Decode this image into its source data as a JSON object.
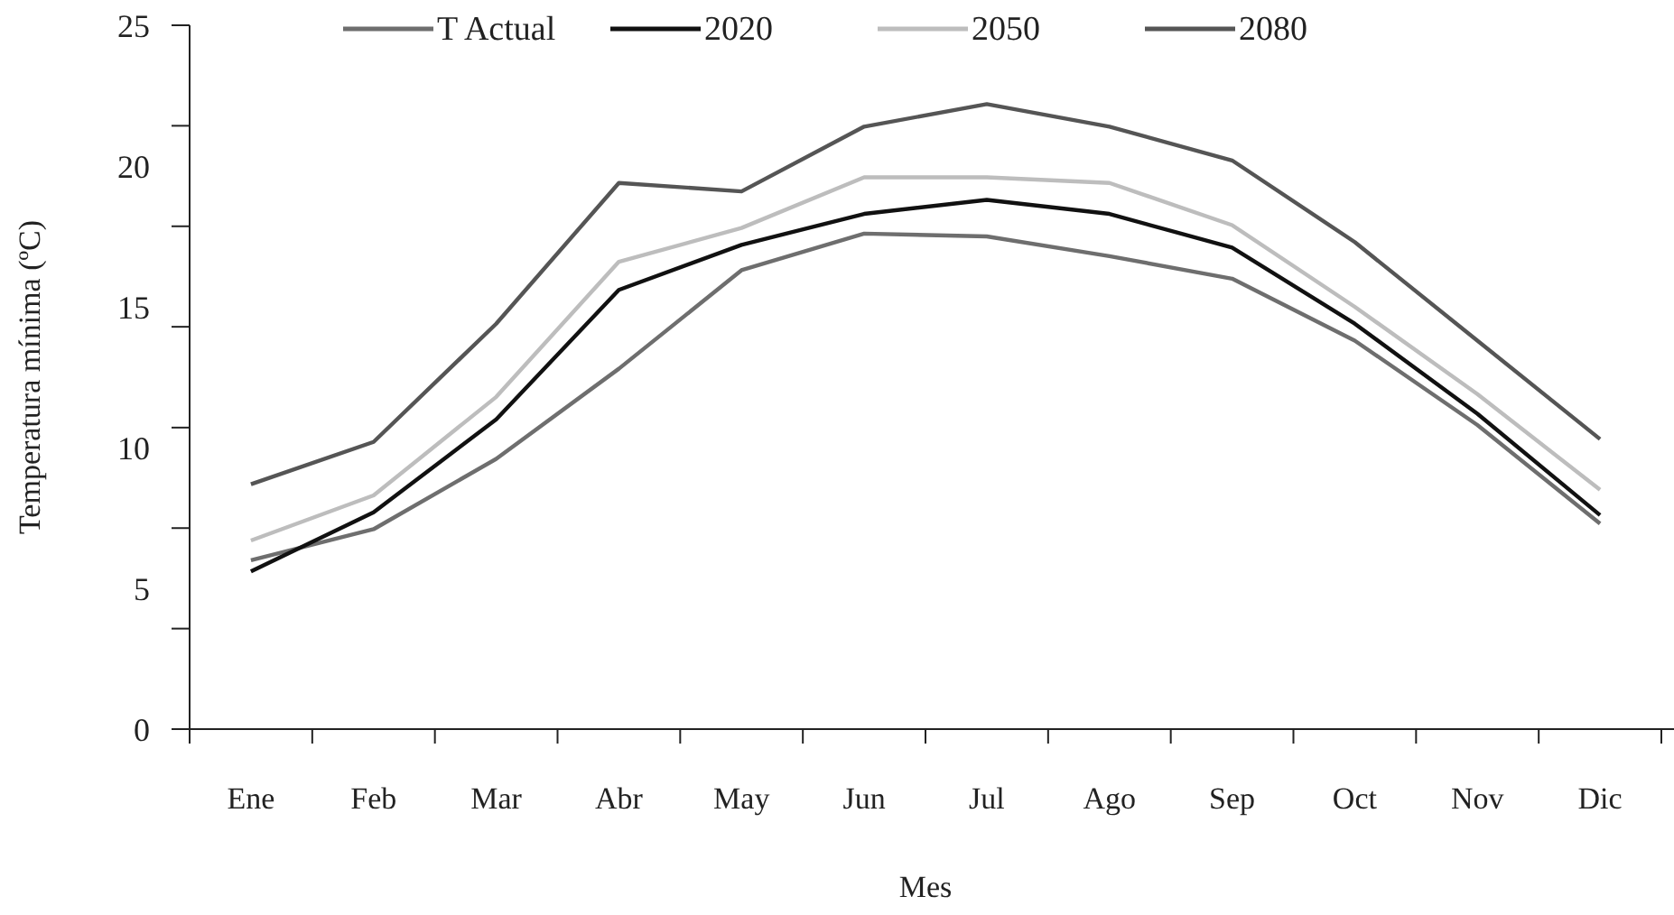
{
  "chart_data": {
    "type": "line",
    "xlabel": "Mes",
    "ylabel": "Temperatura mínima (ºC)",
    "categories": [
      "Ene",
      "Feb",
      "Mar",
      "Abr",
      "May",
      "Jun",
      "Jul",
      "Ago",
      "Sep",
      "Oct",
      "Nov",
      "Dic"
    ],
    "ylim": [
      0,
      25
    ],
    "yticks": [
      0,
      5,
      10,
      15,
      20,
      25,
      {
        "value": 3.57,
        "label": null
      },
      {
        "value": 7.14,
        "label": null
      },
      {
        "value": 10.71,
        "label": null
      },
      {
        "value": 14.29,
        "label": null
      },
      {
        "value": 17.86,
        "label": null
      },
      {
        "value": 21.43,
        "label": null
      }
    ],
    "series": [
      {
        "name": "T Actual",
        "color": "#6e6e6e",
        "values": [
          6.0,
          7.1,
          9.6,
          12.8,
          16.3,
          17.6,
          17.5,
          16.8,
          16.0,
          13.8,
          10.8,
          7.3
        ]
      },
      {
        "name": "2020",
        "color": "#111111",
        "values": [
          5.6,
          7.7,
          11.0,
          15.6,
          17.2,
          18.3,
          18.8,
          18.3,
          17.1,
          14.4,
          11.2,
          7.6
        ]
      },
      {
        "name": "2050",
        "color": "#bdbdbd",
        "values": [
          6.7,
          8.3,
          11.8,
          16.6,
          17.8,
          19.6,
          19.6,
          19.4,
          17.9,
          15.0,
          11.9,
          8.5
        ]
      },
      {
        "name": "2080",
        "color": "#555555",
        "values": [
          8.7,
          10.2,
          14.4,
          19.4,
          19.1,
          21.4,
          22.2,
          21.4,
          20.2,
          17.3,
          13.8,
          10.3
        ]
      }
    ],
    "legend": "top",
    "grid": false,
    "marker": "none",
    "line_style": "solid"
  }
}
